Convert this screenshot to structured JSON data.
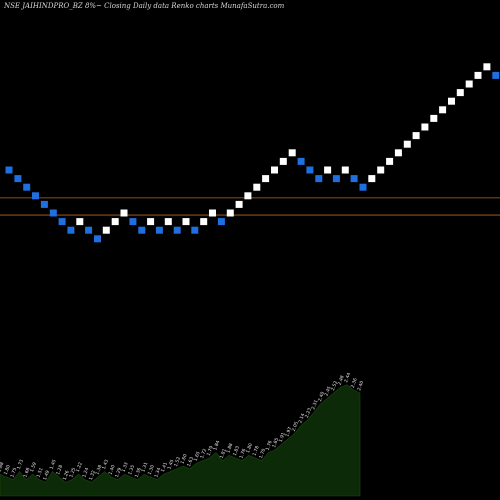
{
  "chart_data": {
    "type": "renko",
    "title": "NSE JAIHINDPRO_BZ 8%~ Closing Daily data  Renko  charts MunafaSutra.com",
    "colors": {
      "up": "#ffffff",
      "down": "#1f6fe0",
      "reference_line": "#b8651f",
      "volume_fill": "#0c2a08",
      "background": "#000000"
    },
    "reference_lines": [
      4.2,
      2.2
    ],
    "y_range": [
      -11,
      10
    ],
    "bricks": [
      {
        "dir": "down",
        "level": 5.0
      },
      {
        "dir": "down",
        "level": 4.0
      },
      {
        "dir": "down",
        "level": 3.0
      },
      {
        "dir": "down",
        "level": 2.0
      },
      {
        "dir": "down",
        "level": 1.0
      },
      {
        "dir": "down",
        "level": 0.0
      },
      {
        "dir": "down",
        "level": -1.0
      },
      {
        "dir": "down",
        "level": -2.0
      },
      {
        "dir": "up",
        "level": -1.0
      },
      {
        "dir": "down",
        "level": -2.0
      },
      {
        "dir": "down",
        "level": -3.0
      },
      {
        "dir": "up",
        "level": -2.0
      },
      {
        "dir": "up",
        "level": -1.0
      },
      {
        "dir": "up",
        "level": 0.0
      },
      {
        "dir": "down",
        "level": -1.0
      },
      {
        "dir": "down",
        "level": -2.0
      },
      {
        "dir": "up",
        "level": -1.0
      },
      {
        "dir": "down",
        "level": -2.0
      },
      {
        "dir": "up",
        "level": -1.0
      },
      {
        "dir": "down",
        "level": -2.0
      },
      {
        "dir": "up",
        "level": -1.0
      },
      {
        "dir": "down",
        "level": -2.0
      },
      {
        "dir": "up",
        "level": -1.0
      },
      {
        "dir": "up",
        "level": 0.0
      },
      {
        "dir": "down",
        "level": -1.0
      },
      {
        "dir": "up",
        "level": 0.0
      },
      {
        "dir": "up",
        "level": 1.0
      },
      {
        "dir": "up",
        "level": 2.0
      },
      {
        "dir": "up",
        "level": 3.0
      },
      {
        "dir": "up",
        "level": 4.0
      },
      {
        "dir": "up",
        "level": 5.0
      },
      {
        "dir": "up",
        "level": 6.0
      },
      {
        "dir": "up",
        "level": 7.0
      },
      {
        "dir": "down",
        "level": 6.0
      },
      {
        "dir": "down",
        "level": 5.0
      },
      {
        "dir": "down",
        "level": 4.0
      },
      {
        "dir": "up",
        "level": 5.0
      },
      {
        "dir": "down",
        "level": 4.0
      },
      {
        "dir": "up",
        "level": 5.0
      },
      {
        "dir": "down",
        "level": 4.0
      },
      {
        "dir": "down",
        "level": 3.0
      },
      {
        "dir": "up",
        "level": 4.0
      },
      {
        "dir": "up",
        "level": 5.0
      },
      {
        "dir": "up",
        "level": 6.0
      },
      {
        "dir": "up",
        "level": 7.0
      },
      {
        "dir": "up",
        "level": 8.0
      },
      {
        "dir": "up",
        "level": 9.0
      },
      {
        "dir": "up",
        "level": 10.0
      },
      {
        "dir": "up",
        "level": 11.0
      },
      {
        "dir": "up",
        "level": 12.0
      },
      {
        "dir": "up",
        "level": 13.0
      },
      {
        "dir": "up",
        "level": 14.0
      },
      {
        "dir": "up",
        "level": 15.0
      },
      {
        "dir": "up",
        "level": 16.0
      },
      {
        "dir": "up",
        "level": 17.0
      },
      {
        "dir": "down",
        "level": 16.0
      }
    ],
    "volume_area": {
      "profile": [
        8,
        7,
        6,
        9,
        6,
        8,
        6,
        5,
        9,
        7,
        5,
        6,
        8,
        6,
        5,
        7,
        9,
        7,
        6,
        8,
        7,
        6,
        8,
        7,
        6,
        8,
        9,
        10,
        11,
        10,
        12,
        13,
        14,
        16,
        13,
        15,
        14,
        13,
        15,
        14,
        13,
        16,
        17,
        19,
        21,
        23,
        26,
        28,
        31,
        34,
        36,
        38,
        40,
        41,
        39,
        38
      ],
      "max": 42,
      "labels": [
        "1.88",
        "1.80",
        "1.75",
        "1.73",
        "1.68",
        "1.59",
        "1.51",
        "1.49",
        "1.45",
        "1.28",
        "1.26",
        "1.25",
        "1.22",
        "1.24",
        "1.32",
        "1.38",
        "1.43",
        "1.40",
        "1.29",
        "1.33",
        "1.35",
        "1.36",
        "1.31",
        "1.30",
        "1.34",
        "1.41",
        "1.45",
        "1.52",
        "1.60",
        "1.63",
        "1.65",
        "1.72",
        "1.79",
        "1.84",
        "1.81",
        "1.88",
        "1.83",
        "1.76",
        "1.80",
        "1.78",
        "1.70",
        "1.76",
        "1.85",
        "1.91",
        "1.97",
        "2.05",
        "2.14",
        "2.23",
        "2.31",
        "2.40",
        "2.45",
        "2.52",
        "2.48",
        "2.44",
        "2.36",
        "2.40"
      ]
    }
  }
}
